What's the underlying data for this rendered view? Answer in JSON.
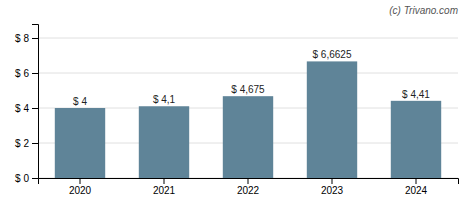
{
  "chart_data": {
    "type": "bar",
    "categories": [
      "2020",
      "2021",
      "2022",
      "2023",
      "2024"
    ],
    "values": [
      4.0,
      4.1,
      4.675,
      6.6625,
      4.41
    ],
    "value_labels": [
      "$ 4",
      "$ 4,1",
      "$ 4,675",
      "$ 6,6625",
      "$ 4,41"
    ],
    "color": "#5f8498",
    "ylim": [
      0,
      8.8
    ],
    "yticks": [
      {
        "value": 0,
        "label": "$ 0"
      },
      {
        "value": 2,
        "label": "$ 2"
      },
      {
        "value": 4,
        "label": "$ 4"
      },
      {
        "value": 6,
        "label": "$ 6"
      },
      {
        "value": 8,
        "label": "$ 8"
      }
    ],
    "grid": true,
    "data_labels": true,
    "annotations": [
      "(c) Trivano.com"
    ]
  }
}
